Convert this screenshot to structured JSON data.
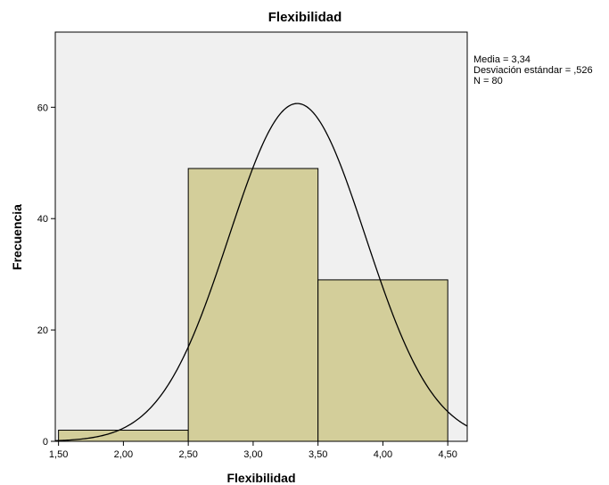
{
  "chart_data": {
    "type": "bar",
    "title": "Flexibilidad",
    "xlabel": "Flexibilidad",
    "ylabel": "Frecuencia",
    "bins": [
      {
        "from": 1.5,
        "to": 2.5,
        "count": 2
      },
      {
        "from": 2.5,
        "to": 3.5,
        "count": 49
      },
      {
        "from": 3.5,
        "to": 4.5,
        "count": 29
      }
    ],
    "x_ticks": [
      1.5,
      2.0,
      2.5,
      3.0,
      3.5,
      4.0,
      4.5
    ],
    "x_tick_labels": [
      "1,50",
      "2,00",
      "2,50",
      "3,00",
      "3,50",
      "4,00",
      "4,50"
    ],
    "y_ticks": [
      0,
      20,
      40,
      60
    ],
    "y_tick_labels": [
      "0",
      "20",
      "40",
      "60"
    ],
    "xlim": [
      1.475,
      4.65
    ],
    "ylim": [
      0,
      73.5
    ],
    "normal_curve": {
      "mean": 3.34,
      "sd": 0.526,
      "n": 80,
      "bin_width": 1.0
    },
    "stats_lines": [
      "Media = 3,34",
      "Desviación estándar = ,526",
      "N = 80"
    ],
    "colors": {
      "bar_fill": "#d3ce9a",
      "plot_background": "#f0f0f0",
      "line": "#000000"
    },
    "grid": false,
    "legend": "right"
  }
}
